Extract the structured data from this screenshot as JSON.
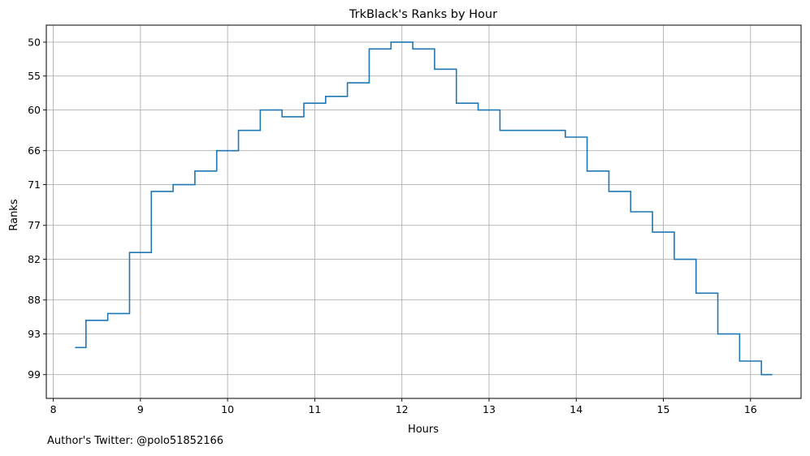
{
  "chart_data": {
    "type": "line",
    "title": "TrkBlack's Ranks by Hour",
    "xlabel": "Hours",
    "ylabel": "Ranks",
    "xlim": [
      7.92,
      16.58
    ],
    "ylim": [
      102.5,
      47.5
    ],
    "y_inverted": true,
    "xticks": [
      8,
      9,
      10,
      11,
      12,
      13,
      14,
      15,
      16
    ],
    "yticks": [
      50,
      55,
      60,
      66,
      71,
      77,
      82,
      88,
      93,
      99
    ],
    "grid": true,
    "step_where": "mid",
    "line_color": "#1f77b4",
    "series": [
      {
        "x": [
          8.25,
          8.5,
          8.75,
          9.0,
          9.25,
          9.5,
          9.75,
          10.0,
          10.25,
          10.5,
          10.75,
          11.0,
          11.25,
          11.5,
          11.75,
          12.0,
          12.25,
          12.5,
          12.75,
          13.0,
          13.25,
          13.5,
          13.75,
          14.0,
          14.25,
          14.5,
          14.75,
          15.0,
          15.25,
          15.5,
          15.75,
          16.0,
          16.25
        ],
        "y": [
          95,
          91,
          90,
          81,
          72,
          71,
          69,
          66,
          63,
          60,
          61,
          59,
          58,
          56,
          51,
          50,
          51,
          54,
          59,
          60,
          63,
          63,
          63,
          64,
          69,
          72,
          75,
          78,
          82,
          87,
          93,
          97,
          99
        ]
      }
    ]
  },
  "footer": {
    "author_note": "Author's Twitter: @polo51852166"
  }
}
